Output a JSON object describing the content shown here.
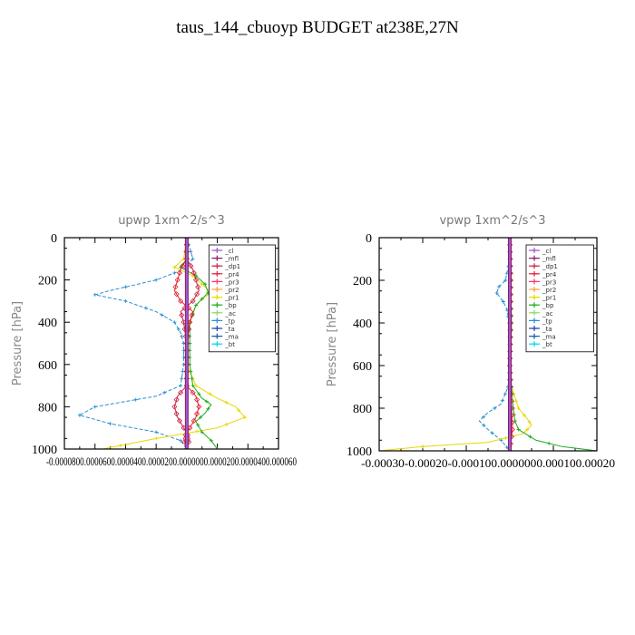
{
  "title": "taus_144_cbuoyp  BUDGET at238E,27N",
  "colors": {
    "_cl": "#9b59d0",
    "_mfl": "#8b1c62",
    "_dp1": "#cc2244",
    "_pr4": "#e02030",
    "_pr3": "#ff3366",
    "_pr2": "#ffa040",
    "_pr1": "#e8d800",
    "_bp": "#22aa22",
    "_ac": "#88dd66",
    "_tp": "#2a8fd0",
    "_ta": "#2244aa",
    "_ma": "#1a5fa0",
    "_bt": "#00d8e8"
  },
  "chart_data": [
    {
      "type": "line",
      "title": "upwp   1xm^2/s^3",
      "ylabel": "Pressure [hPa]",
      "ylim": [
        1000,
        0
      ],
      "yticks": [
        "0",
        "200",
        "400",
        "600",
        "800",
        "1000"
      ],
      "xticks": [
        "-0.000080",
        "-0.000060",
        "-0.000040",
        "-0.000020",
        "0.000000",
        "0.000020",
        "0.000040",
        "0.000060"
      ],
      "xticklabel_text": "-0.0000800.0000600.0000400.0000200.0000000.0000200.0000400.000060",
      "xlim": [
        -8e-05,
        6e-05
      ],
      "legend": [
        "_cl",
        "_mfl",
        "_dp1",
        "_pr4",
        "_pr3",
        "_pr2",
        "_pr1",
        "_bp",
        "_ac",
        "_tp",
        "_ta",
        "_ma",
        "_bt"
      ],
      "series": [
        {
          "name": "_tp",
          "y": [
            0,
            50,
            100,
            150,
            200,
            250,
            270,
            300,
            350,
            400,
            450,
            500,
            600,
            700,
            750,
            800,
            840,
            880,
            920,
            960,
            1000
          ],
          "x": [
            0.0,
            2e-06,
            4e-06,
            -2e-06,
            -2e-05,
            -5e-05,
            -6e-05,
            -4e-05,
            -2e-05,
            -8e-06,
            -4e-06,
            -2e-06,
            -2e-06,
            -4e-06,
            -2e-05,
            -6e-05,
            -7e-05,
            -5e-05,
            -2e-05,
            -4e-06,
            0.0
          ]
        },
        {
          "name": "_pr1",
          "y": [
            0,
            100,
            140,
            180,
            220,
            260,
            290,
            320,
            360,
            400,
            500,
            600,
            700,
            760,
            800,
            850,
            900,
            950,
            1000
          ],
          "x": [
            0.0,
            -2e-06,
            -8e-06,
            4e-06,
            1e-05,
            1.6e-05,
            1e-05,
            6e-06,
            4e-06,
            2e-06,
            0.0,
            0.0,
            6e-06,
            2e-05,
            3.2e-05,
            3.8e-05,
            2e-05,
            -2e-05,
            -5.5e-05
          ]
        },
        {
          "name": "_bp",
          "y": [
            0,
            100,
            140,
            180,
            220,
            260,
            290,
            320,
            360,
            400,
            500,
            600,
            700,
            760,
            790,
            830,
            870,
            920,
            960,
            1000
          ],
          "x": [
            0.0,
            0.0,
            -4e-06,
            6e-06,
            1.2e-05,
            1.4e-05,
            1e-05,
            6e-06,
            4e-06,
            2e-06,
            2e-06,
            2e-06,
            4e-06,
            1e-05,
            1.6e-05,
            1.2e-05,
            6e-06,
            1e-05,
            1.6e-05,
            2e-05
          ]
        },
        {
          "name": "_pr4",
          "y": [
            0,
            100,
            150,
            200,
            250,
            300,
            350,
            400,
            500,
            600,
            700,
            750,
            800,
            850,
            900,
            950,
            1000
          ],
          "x": [
            0.0,
            0.0,
            -4e-06,
            -6e-06,
            -8e-06,
            -4e-06,
            4e-06,
            2e-06,
            0.0,
            0.0,
            0.0,
            6e-06,
            8e-06,
            6e-06,
            2e-06,
            -2e-06,
            0.0
          ]
        },
        {
          "name": "_dp1",
          "y": [
            0,
            100,
            150,
            200,
            250,
            300,
            350,
            400,
            500,
            600,
            700,
            750,
            800,
            850,
            900,
            950,
            1000
          ],
          "x": [
            0.0,
            0.0,
            4e-06,
            6e-06,
            8e-06,
            4e-06,
            -4e-06,
            -2e-06,
            0.0,
            0.0,
            0.0,
            -6e-06,
            -8e-06,
            -6e-06,
            -2e-06,
            2e-06,
            0.0
          ]
        },
        {
          "name": "_mfl",
          "y": [
            0,
            200,
            400,
            600,
            800,
            1000
          ],
          "x": [
            0,
            0,
            0,
            0,
            0,
            0
          ]
        },
        {
          "name": "_cl",
          "y": [
            0,
            200,
            400,
            600,
            800,
            1000
          ],
          "x": [
            0,
            0,
            0,
            0,
            0,
            0
          ]
        }
      ]
    },
    {
      "type": "line",
      "title": "vpwp   1xm^2/s^3",
      "ylabel": "Pressure [hPa]",
      "ylim": [
        1000,
        0
      ],
      "yticks": [
        "0",
        "200",
        "400",
        "600",
        "800",
        "1000"
      ],
      "xticks": [
        "-0.00030",
        "-0.00020",
        "-0.00010",
        "0.000000",
        "0.00010",
        "0.00020"
      ],
      "xticklabel_text": "-0.00030-0.00020-0.000100.0000000.000100.00020",
      "xlim": [
        -0.0003,
        0.0002
      ],
      "legend": [
        "_cl",
        "_mfl",
        "_dp1",
        "_pr4",
        "_pr3",
        "_pr2",
        "_pr1",
        "_bp",
        "_ac",
        "_tp",
        "_ta",
        "_ma",
        "_bt"
      ],
      "series": [
        {
          "name": "_tp",
          "y": [
            0,
            100,
            200,
            230,
            260,
            300,
            340,
            400,
            500,
            600,
            700,
            780,
            820,
            860,
            900,
            950,
            1000
          ],
          "x": [
            0.0,
            0.0,
            -1e-05,
            -2.5e-05,
            -3e-05,
            -1.5e-05,
            -6e-06,
            -2e-06,
            0.0,
            0.0,
            -4e-06,
            -2e-05,
            -5e-05,
            -7e-05,
            -5e-05,
            -2e-05,
            0.0
          ]
        },
        {
          "name": "_pr1",
          "y": [
            0,
            200,
            400,
            600,
            700,
            800,
            850,
            880,
            920,
            960,
            980,
            1000
          ],
          "x": [
            0.0,
            2e-06,
            0.0,
            0.0,
            4e-06,
            2e-05,
            4e-05,
            5e-05,
            3e-05,
            -5e-05,
            -0.0002,
            -0.0003
          ]
        },
        {
          "name": "_bp",
          "y": [
            0,
            200,
            400,
            600,
            700,
            800,
            860,
            900,
            950,
            980,
            1000
          ],
          "x": [
            0.0,
            2e-06,
            4e-06,
            2e-06,
            4e-06,
            8e-06,
            1.2e-05,
            2e-05,
            6e-05,
            0.00012,
            0.0002
          ]
        },
        {
          "name": "_pr4",
          "y": [
            0,
            200,
            400,
            600,
            800,
            900,
            1000
          ],
          "x": [
            0,
            2e-06,
            2e-06,
            0,
            4e-06,
            6e-06,
            0
          ]
        },
        {
          "name": "_mfl",
          "y": [
            0,
            200,
            400,
            600,
            800,
            1000
          ],
          "x": [
            0,
            0,
            0,
            0,
            0,
            0
          ]
        },
        {
          "name": "_cl",
          "y": [
            0,
            200,
            400,
            600,
            800,
            1000
          ],
          "x": [
            0,
            0,
            0,
            0,
            0,
            0
          ]
        }
      ]
    }
  ]
}
